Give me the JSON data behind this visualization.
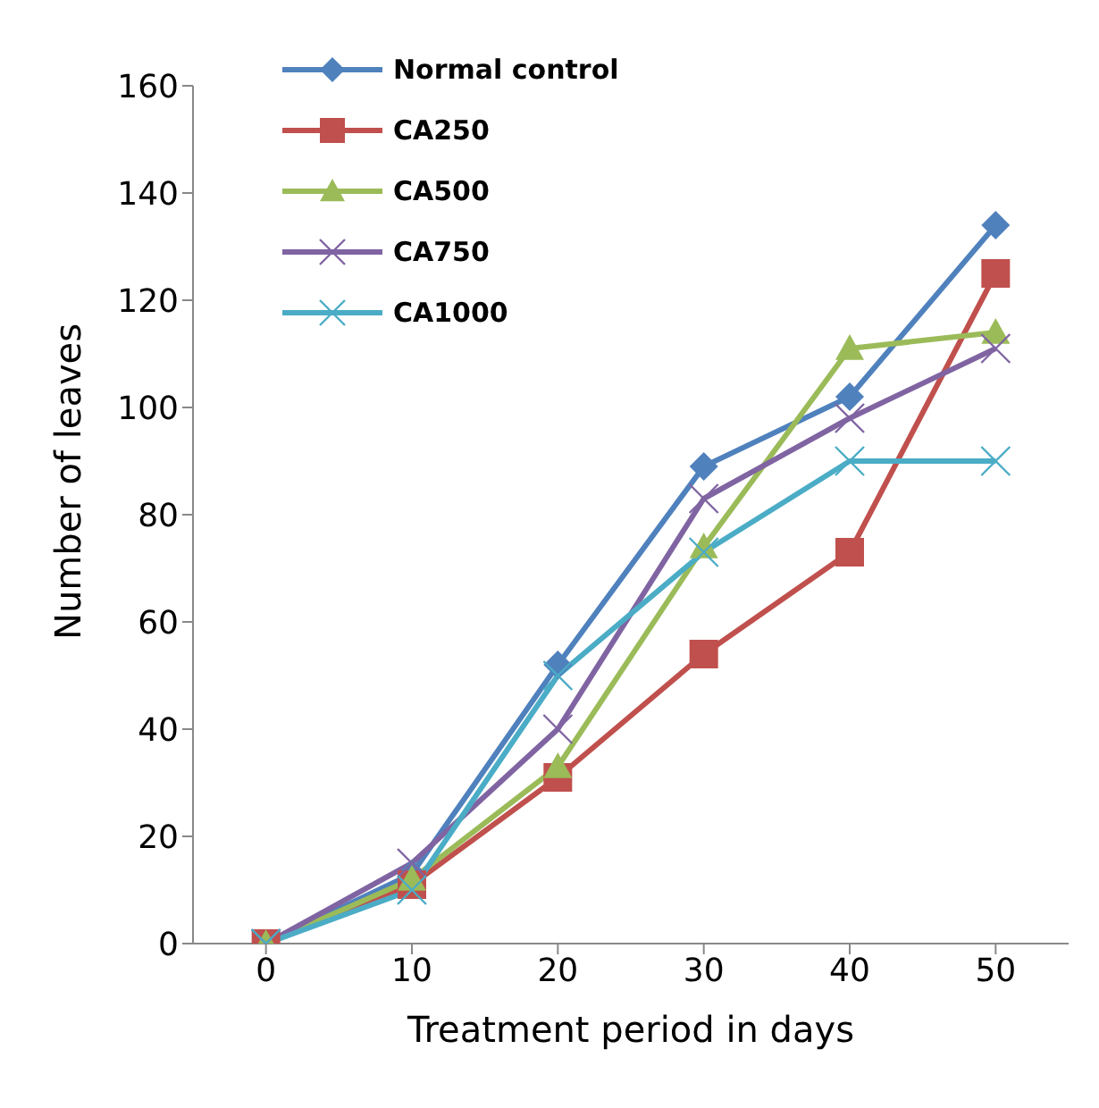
{
  "chart_data": {
    "type": "line",
    "xlabel": "Treatment period in days",
    "ylabel": "Number of leaves",
    "categories": [
      "0",
      "10",
      "20",
      "30",
      "40",
      "50"
    ],
    "series": [
      {
        "name": "Normal control",
        "color": "#4f81bd",
        "marker": "diamond",
        "values": [
          0,
          13,
          52,
          89,
          102,
          134
        ]
      },
      {
        "name": "CA250",
        "color": "#c0504d",
        "marker": "square",
        "values": [
          0,
          11,
          31,
          54,
          73,
          125
        ]
      },
      {
        "name": "CA500",
        "color": "#9bbb59",
        "marker": "triangle",
        "values": [
          0,
          12,
          33,
          74,
          111,
          114
        ]
      },
      {
        "name": "CA750",
        "color": "#8064a2",
        "marker": "cross",
        "values": [
          0,
          15,
          40,
          83,
          98,
          111
        ]
      },
      {
        "name": "CA1000",
        "color": "#4bacc6",
        "marker": "cross",
        "values": [
          0,
          10,
          50,
          73,
          90,
          90
        ]
      }
    ],
    "ylim": [
      0,
      160
    ],
    "yticks": [
      0,
      20,
      40,
      60,
      80,
      100,
      120,
      140,
      160
    ],
    "grid": false,
    "legend": "top left"
  }
}
